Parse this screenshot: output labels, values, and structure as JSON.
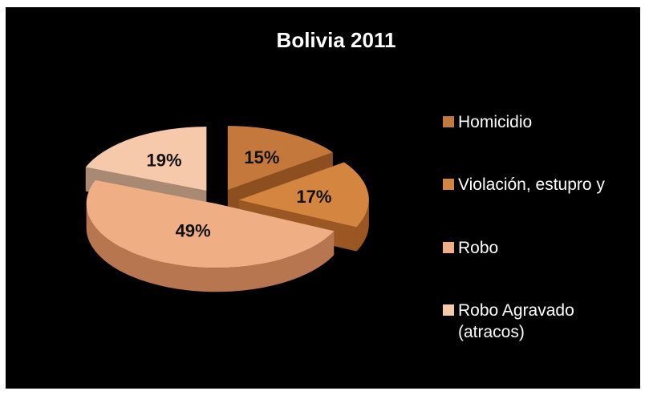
{
  "chart_data": {
    "type": "pie",
    "title": "Bolivia 2011",
    "categories": [
      "Homicidio",
      "Violación, estupro y",
      "Robo",
      "Robo Agravado (atracos)"
    ],
    "values": [
      15,
      17,
      49,
      19
    ],
    "data_labels": [
      "15%",
      "17%",
      "49%",
      "19%"
    ],
    "legend_labels": [
      "Homicidio",
      "Violación, estupro y",
      "Robo",
      "Robo Agravado\n(atracos)"
    ],
    "colors": [
      "#c5783c",
      "#d4853f",
      "#f0ae84",
      "#f5c9a9"
    ],
    "side_colors": [
      "#8e4f20",
      "#9a5724",
      "#b87650",
      "#a88a74"
    ],
    "exploded": true,
    "legend_position": "right",
    "background": "#000000"
  }
}
